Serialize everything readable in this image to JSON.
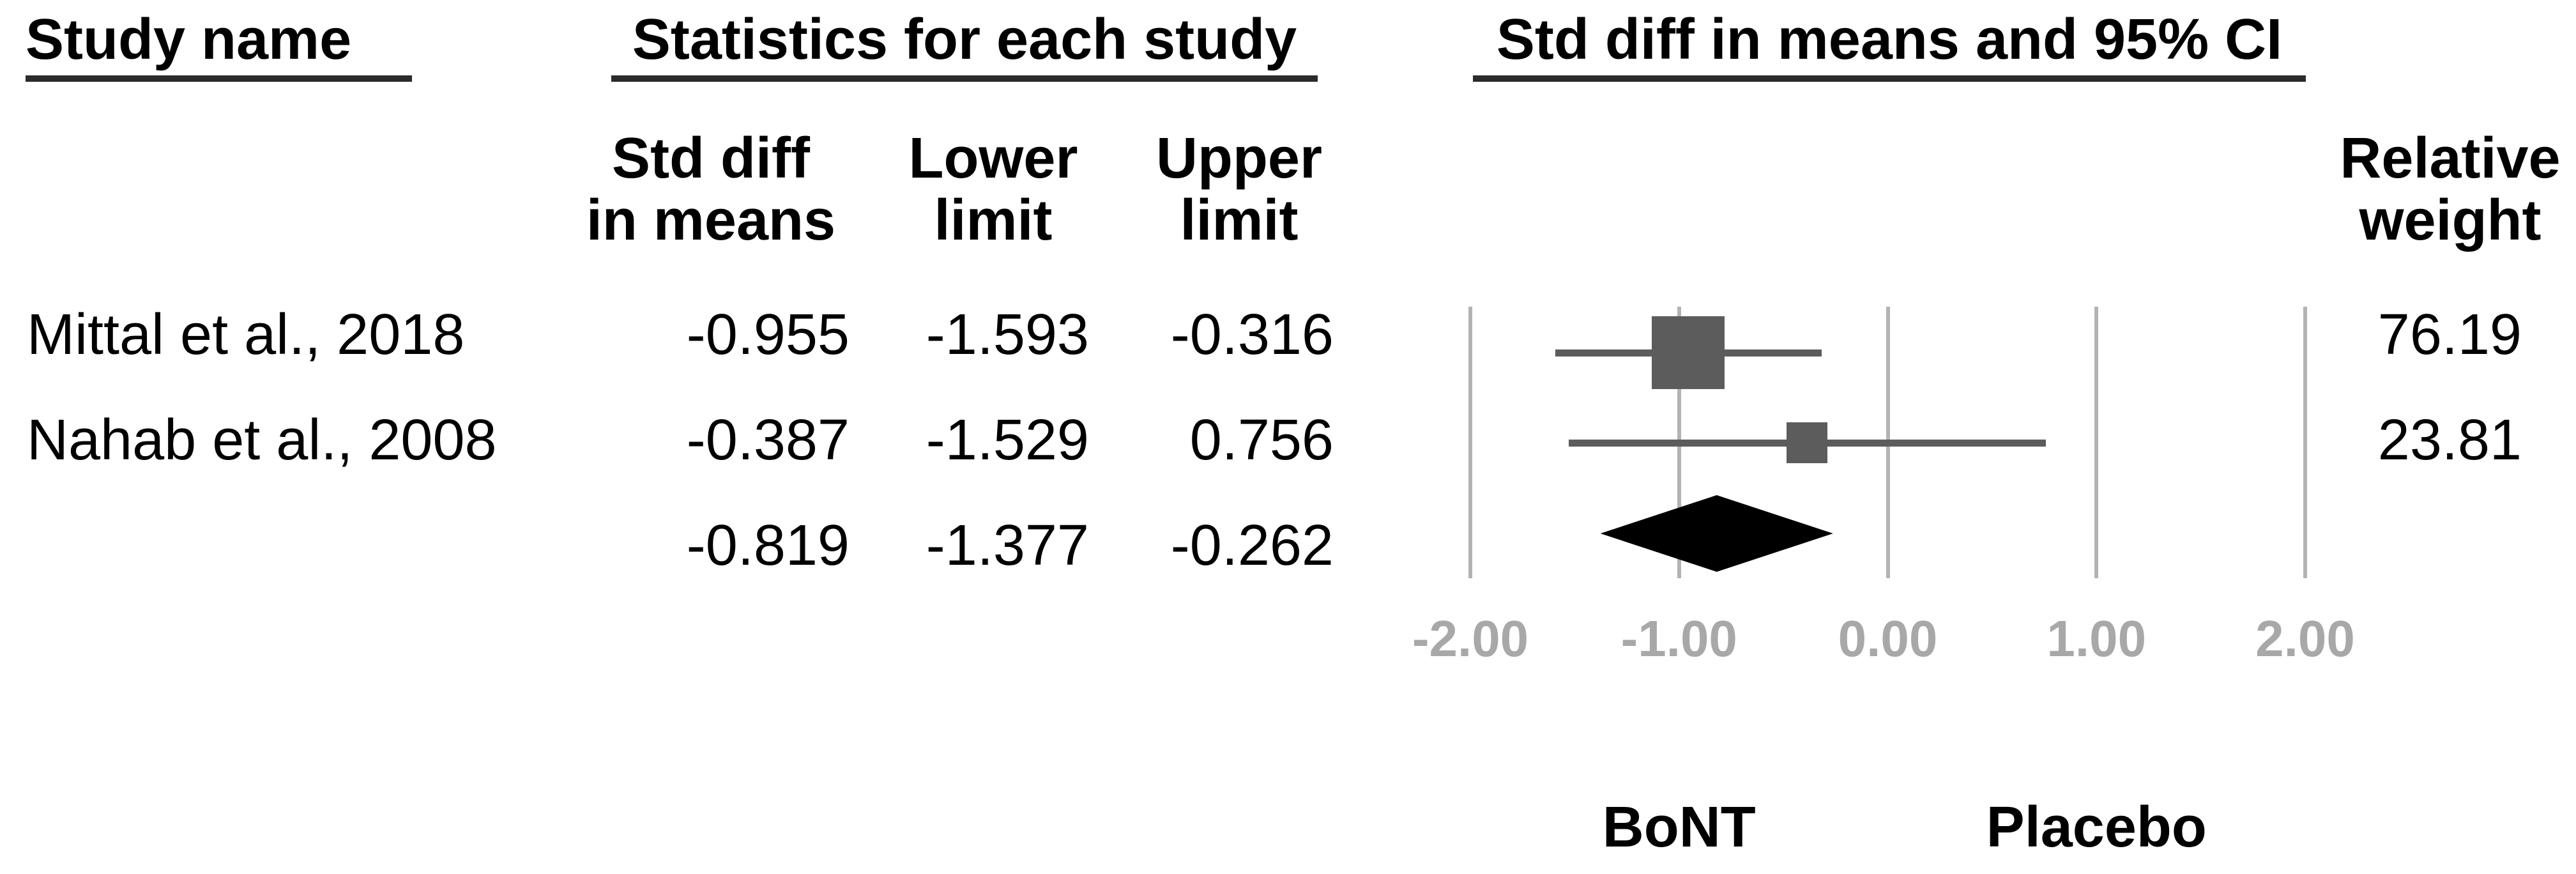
{
  "headers": {
    "study_group": "Study name",
    "stats_group": "Statistics for each study",
    "plot_group": "Std diff in means and 95% CI",
    "cols": {
      "std_diff": [
        "Std diff",
        "in means"
      ],
      "lower": [
        "Lower",
        "limit"
      ],
      "upper": [
        "Upper",
        "limit"
      ],
      "weight": [
        "Relative",
        "weight"
      ]
    }
  },
  "colors": {
    "text": "#000000",
    "header_underline": "#2b2b2b",
    "gridline": "#b3b3b3",
    "axis_label": "#a8a8a8",
    "marker": "#5c5c5c",
    "ci_line": "#5c5c5c",
    "diamond": "#000000"
  },
  "chart_data": {
    "type": "forest",
    "title": "Std diff in means and 95% CI",
    "x_axis": {
      "min": -2,
      "max": 2,
      "ticks": [
        -2,
        -1,
        0,
        1,
        2
      ],
      "tick_labels": [
        "-2.00",
        "-1.00",
        "0.00",
        "1.00",
        "2.00"
      ],
      "grid": true
    },
    "studies": [
      {
        "name": "Mittal et al., 2018",
        "std_diff": -0.955,
        "lower": -1.593,
        "upper": -0.316,
        "weight": 76.19
      },
      {
        "name": "Nahab et al., 2008",
        "std_diff": -0.387,
        "lower": -1.529,
        "upper": 0.756,
        "weight": 23.81
      }
    ],
    "summary": {
      "std_diff": -0.819,
      "lower": -1.377,
      "upper": -0.262
    },
    "group_labels": [
      {
        "label": "BoNT",
        "x": -1
      },
      {
        "label": "Placebo",
        "x": 1
      }
    ]
  }
}
